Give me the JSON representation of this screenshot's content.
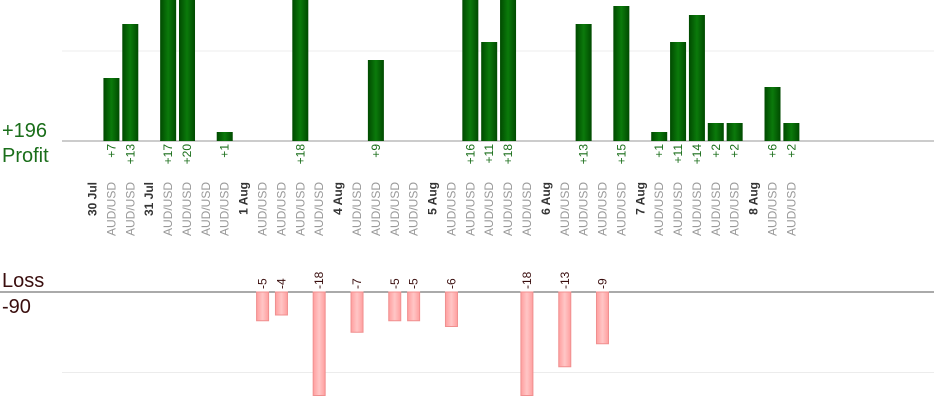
{
  "labels": {
    "profit_total": "+196",
    "profit_label": "Profit",
    "loss_label": "Loss",
    "loss_total": "-90"
  },
  "colors": {
    "profit_bar": "#006400",
    "profit_text": "#1a6e1a",
    "loss_bar": "#ffb4b4",
    "loss_text": "#3a0e0e",
    "axis": "#999999"
  },
  "chart_data": {
    "type": "bar",
    "title": "",
    "xlabel": "",
    "ylabel": "",
    "grid": true,
    "profit_ylim": [
      0,
      14
    ],
    "loss_ylim": [
      -20,
      0
    ],
    "days": [
      {
        "date": "30 Jul",
        "trades": [
          {
            "pair": "AUD/USD",
            "value": 7,
            "label": "+7"
          },
          {
            "pair": "AUD/USD",
            "value": 13,
            "label": "+13"
          }
        ]
      },
      {
        "date": "31 Jul",
        "trades": [
          {
            "pair": "AUD/USD",
            "value": 17,
            "label": "+17"
          },
          {
            "pair": "AUD/USD",
            "value": 20,
            "label": "+20"
          },
          {
            "pair": "AUD/USD",
            "value": 0,
            "label": ""
          },
          {
            "pair": "AUD/USD",
            "value": 1,
            "label": "+1"
          }
        ]
      },
      {
        "date": "1 Aug",
        "trades": [
          {
            "pair": "AUD/USD",
            "value": -5,
            "label": "-5"
          },
          {
            "pair": "AUD/USD",
            "value": -4,
            "label": "-4"
          },
          {
            "pair": "AUD/USD",
            "value": 18,
            "label": "+18"
          },
          {
            "pair": "AUD/USD",
            "value": -18,
            "label": "-18"
          }
        ]
      },
      {
        "date": "4 Aug",
        "trades": [
          {
            "pair": "AUD/USD",
            "value": -7,
            "label": "-7"
          },
          {
            "pair": "AUD/USD",
            "value": 9,
            "label": "+9"
          },
          {
            "pair": "AUD/USD",
            "value": -5,
            "label": "-5"
          },
          {
            "pair": "AUD/USD",
            "value": -5,
            "label": "-5"
          }
        ]
      },
      {
        "date": "5 Aug",
        "trades": [
          {
            "pair": "AUD/USD",
            "value": -6,
            "label": "-6"
          },
          {
            "pair": "AUD/USD",
            "value": 16,
            "label": "+16"
          },
          {
            "pair": "AUD/USD",
            "value": 11,
            "label": "+11"
          },
          {
            "pair": "AUD/USD",
            "value": 18,
            "label": "+18"
          },
          {
            "pair": "AUD/USD",
            "value": -18,
            "label": "-18"
          }
        ]
      },
      {
        "date": "6 Aug",
        "trades": [
          {
            "pair": "AUD/USD",
            "value": -13,
            "label": "-13"
          },
          {
            "pair": "AUD/USD",
            "value": 13,
            "label": "+13"
          },
          {
            "pair": "AUD/USD",
            "value": -9,
            "label": "-9"
          },
          {
            "pair": "AUD/USD",
            "value": 15,
            "label": "+15"
          }
        ]
      },
      {
        "date": "7 Aug",
        "trades": [
          {
            "pair": "AUD/USD",
            "value": 1,
            "label": "+1"
          },
          {
            "pair": "AUD/USD",
            "value": 11,
            "label": "+11"
          },
          {
            "pair": "AUD/USD",
            "value": 14,
            "label": "+14"
          },
          {
            "pair": "AUD/USD",
            "value": 2,
            "label": "+2"
          },
          {
            "pair": "AUD/USD",
            "value": 2,
            "label": "+2"
          }
        ]
      },
      {
        "date": "8 Aug",
        "trades": [
          {
            "pair": "AUD/USD",
            "value": 6,
            "label": "+6"
          },
          {
            "pair": "AUD/USD",
            "value": 2,
            "label": "+2"
          }
        ]
      }
    ]
  }
}
